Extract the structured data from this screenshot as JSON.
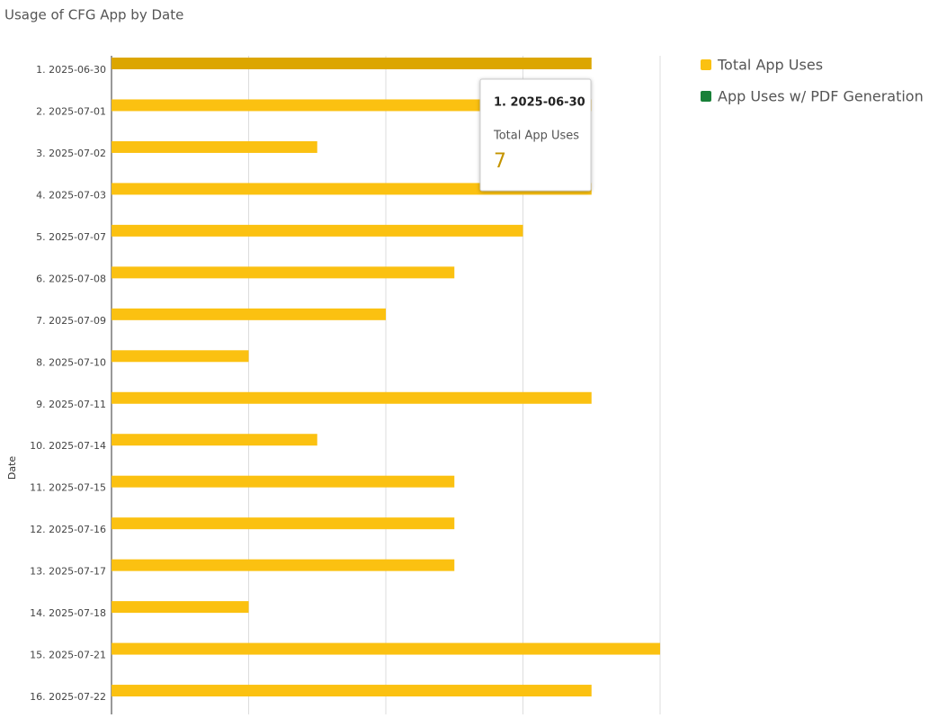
{
  "chart_data": {
    "type": "bar",
    "orientation": "horizontal",
    "title": "Usage of CFG App by Date",
    "y_label": "Date",
    "categories": [
      "1. 2025-06-30",
      "2. 2025-07-01",
      "3. 2025-07-02",
      "4. 2025-07-03",
      "5. 2025-07-07",
      "6. 2025-07-08",
      "7. 2025-07-09",
      "8. 2025-07-10",
      "9. 2025-07-11",
      "10. 2025-07-14",
      "11. 2025-07-15",
      "12. 2025-07-16",
      "13. 2025-07-17",
      "14. 2025-07-18",
      "15. 2025-07-21",
      "16. 2025-07-22"
    ],
    "series": [
      {
        "name": "Total App Uses",
        "color": "#fbc111",
        "values": [
          7,
          7,
          3,
          7,
          6,
          5,
          4,
          2,
          7,
          3,
          5,
          5,
          5,
          2,
          8,
          7
        ]
      },
      {
        "name": "App Uses w/ PDF Generation",
        "color": "#188038",
        "values": [
          0,
          0,
          0,
          0,
          0,
          0,
          0,
          0,
          0,
          0,
          0,
          0,
          0,
          0,
          0,
          0
        ]
      }
    ],
    "xlim": [
      0,
      8
    ],
    "xticks": [
      0,
      2,
      4,
      6,
      8
    ],
    "grid": true,
    "legend": "right",
    "tooltip": {
      "category_index": 0,
      "series_index": 0
    }
  }
}
